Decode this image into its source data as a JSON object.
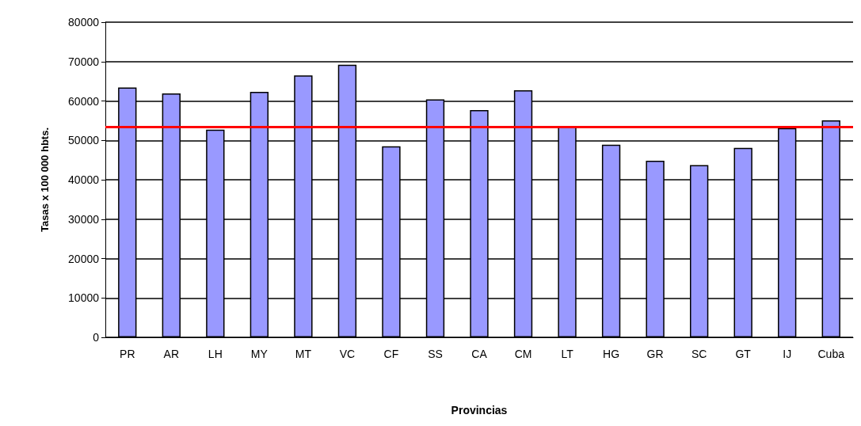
{
  "chart_data": {
    "type": "bar",
    "xlabel": "Provincias",
    "ylabel": "Tasas x 100 000 hbts.",
    "categories": [
      "PR",
      "AR",
      "LH",
      "MY",
      "MT",
      "VC",
      "CF",
      "SS",
      "CA",
      "CM",
      "LT",
      "HG",
      "GR",
      "SC",
      "GT",
      "IJ",
      "Cuba"
    ],
    "values": [
      63400,
      61900,
      52700,
      62300,
      66500,
      69200,
      48500,
      60400,
      57700,
      62700,
      53500,
      48900,
      44800,
      43700,
      48100,
      53100,
      55100
    ],
    "color": "#9999ff",
    "ylim": [
      0,
      80000
    ],
    "yticks": [
      0,
      10000,
      20000,
      30000,
      40000,
      50000,
      60000,
      70000,
      80000
    ],
    "grid": "y",
    "ref_lines": [
      {
        "axis": "y",
        "value": 53500,
        "color": "#ff0000"
      }
    ]
  }
}
